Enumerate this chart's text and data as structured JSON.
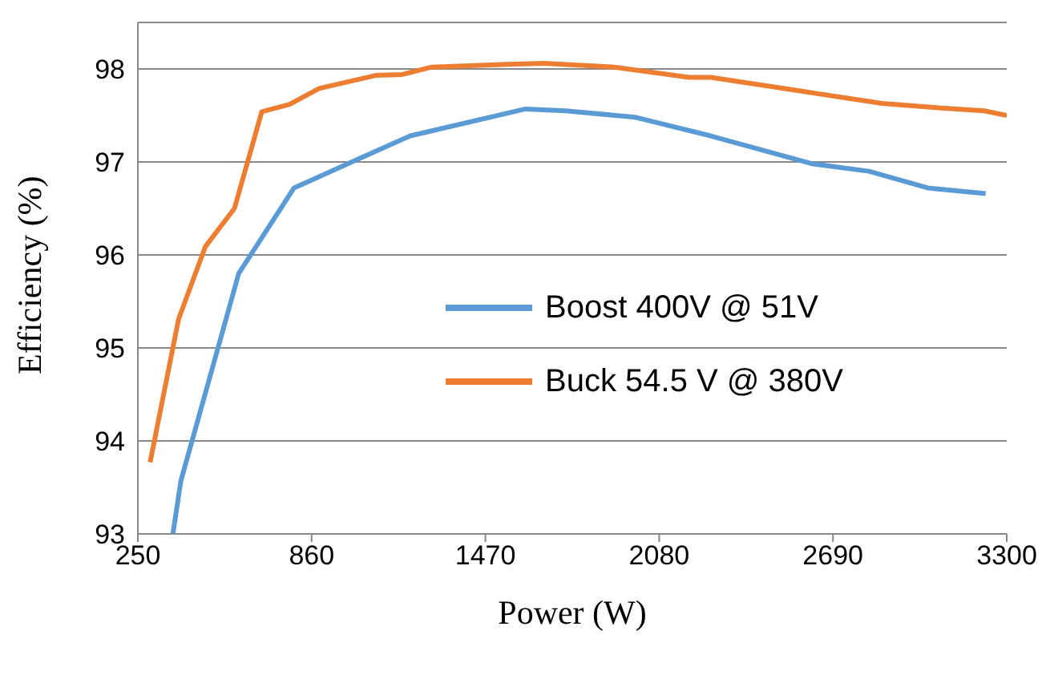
{
  "chart_data": {
    "type": "line",
    "xlabel": "Power (W)",
    "ylabel": "Efficiency (%)",
    "xlim": [
      250,
      3300
    ],
    "xticks": [
      250,
      860,
      1470,
      2080,
      2690,
      3300
    ],
    "ylim": [
      93,
      98.5
    ],
    "yticks": [
      93,
      94,
      95,
      96,
      97,
      98
    ],
    "grid": "y",
    "legend": "right",
    "marker": "none",
    "line_style": "solid",
    "series": [
      {
        "name": "Boost 400V @ 51V",
        "color": "#5b9bd5",
        "x": [
          373,
          401,
          604,
          798,
          1009,
          1206,
          1611,
          1752,
          1997,
          2261,
          2618,
          2816,
          3023,
          3226
        ],
        "values": [
          93.0,
          93.57,
          95.8,
          96.72,
          97.01,
          97.28,
          97.57,
          97.55,
          97.48,
          97.28,
          96.98,
          96.9,
          96.72,
          96.66
        ]
      },
      {
        "name": "Buck 54.5 V @ 380V",
        "color": "#ed7d31",
        "x": [
          293,
          393,
          487,
          589,
          685,
          783,
          886,
          1084,
          1178,
          1282,
          1545,
          1677,
          1922,
          2185,
          2261,
          2581,
          2863,
          3070,
          3221,
          3300
        ],
        "values": [
          93.77,
          95.31,
          96.09,
          96.5,
          97.54,
          97.62,
          97.79,
          97.93,
          97.94,
          98.02,
          98.05,
          98.06,
          98.02,
          97.91,
          97.91,
          97.76,
          97.63,
          97.58,
          97.55,
          97.5
        ]
      }
    ]
  }
}
